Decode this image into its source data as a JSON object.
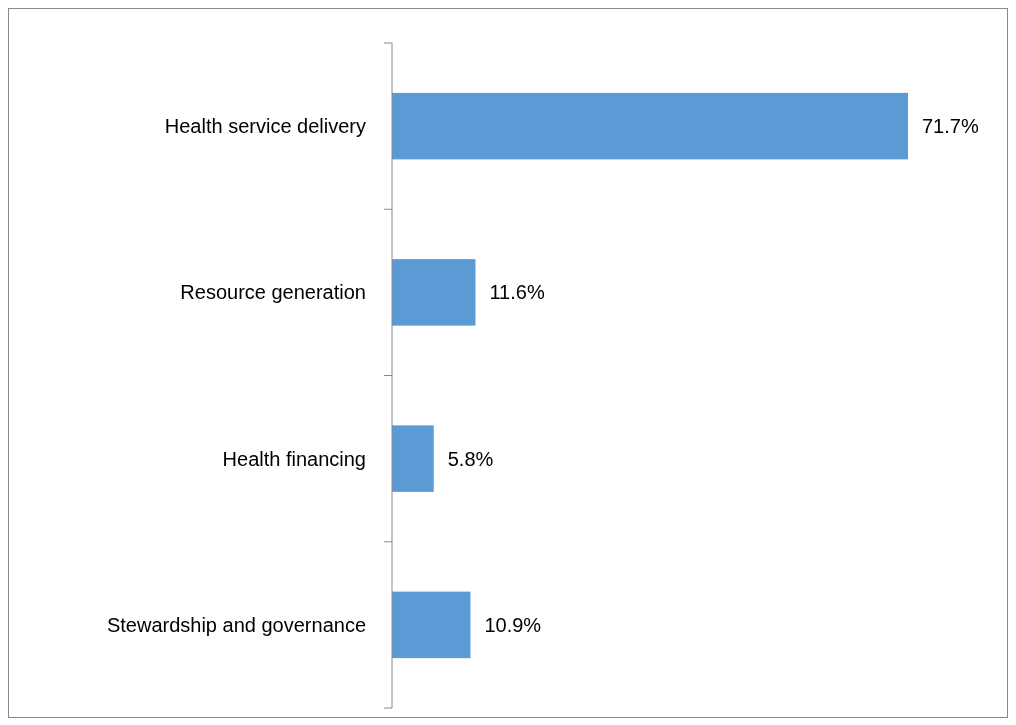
{
  "chart_data": {
    "type": "bar",
    "orientation": "horizontal",
    "categories": [
      "Health service delivery",
      "Resource generation",
      "Health financing",
      "Stewardship and governance"
    ],
    "values": [
      71.7,
      11.6,
      5.8,
      10.9
    ],
    "value_labels": [
      "71.7%",
      "11.6%",
      "5.8%",
      "10.9%"
    ],
    "color": "#5b9bd5"
  }
}
